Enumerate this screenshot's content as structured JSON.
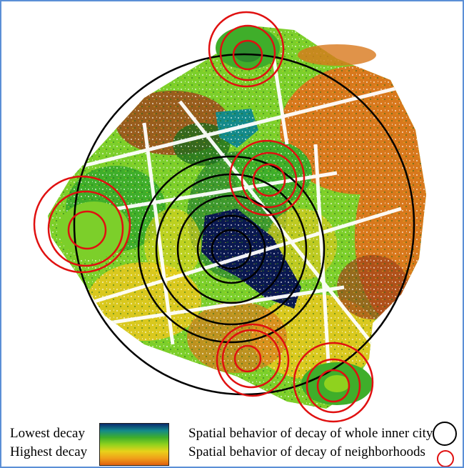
{
  "legend": {
    "lowest_label": "Lowest decay",
    "highest_label": "Highest decay",
    "city_label": "Spatial behavior of decay of whole inner city",
    "neighborhood_label": "Spatial behavior of decay of neighborhoods",
    "ramp_colors": [
      "#0a2a6e",
      "#138a8a",
      "#3fae2a",
      "#8fd21e",
      "#e8d21a",
      "#f0a01a",
      "#e06010"
    ]
  },
  "colors": {
    "city_circle": "#000000",
    "neighborhood_circle": "#e01010",
    "frame_border": "#5b8fd6",
    "lake": "#0a1850",
    "green_dark": "#2e8b2e",
    "green_light": "#7ccf2a",
    "yellow": "#d9c81e",
    "orange": "#d8781c",
    "brown": "#a0401a"
  }
}
